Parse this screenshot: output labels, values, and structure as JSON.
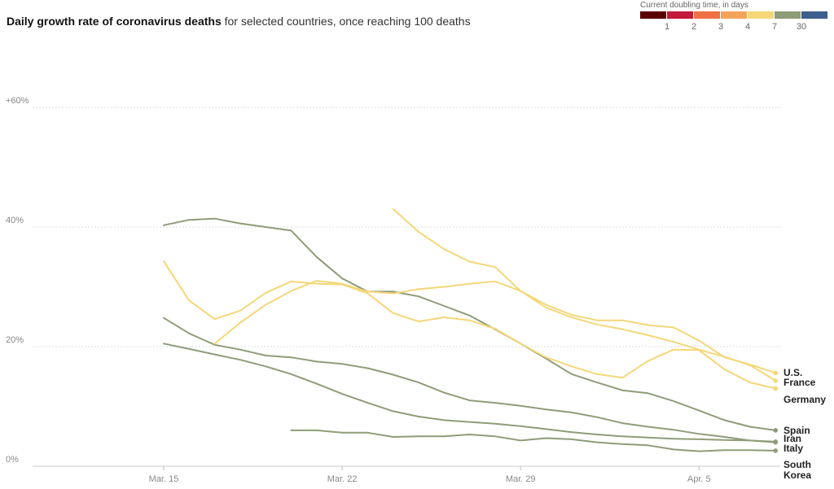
{
  "title": {
    "bold": "Daily growth rate of coronavirus deaths",
    "rest": " for selected countries, once reaching 100 deaths"
  },
  "legend": {
    "title": "Current doubling time, in days",
    "colors": [
      "#5a0000",
      "#c3193a",
      "#ee7045",
      "#f3a45a",
      "#f5d778",
      "#8f9c78",
      "#3c5f8d"
    ],
    "ticks": [
      "1",
      "2",
      "3",
      "4",
      "7",
      "30"
    ]
  },
  "chart_data": {
    "type": "line",
    "x_ticks": [
      "Mar. 15",
      "Mar. 22",
      "Mar. 29",
      "Apr. 5"
    ],
    "y_ticks": [
      "0%",
      "20%",
      "40%",
      "+60%"
    ],
    "ylim": [
      0,
      60
    ],
    "xlim": [
      "2020-03-15",
      "2020-04-08"
    ],
    "grid": true,
    "series": [
      {
        "name": "U.S.",
        "label": [
          "U.S."
        ],
        "color": "#f5d778",
        "x": [
          "2020-03-24",
          "2020-03-25",
          "2020-03-26",
          "2020-03-27",
          "2020-03-28",
          "2020-03-29",
          "2020-03-30",
          "2020-03-31",
          "2020-04-01",
          "2020-04-02",
          "2020-04-03",
          "2020-04-04",
          "2020-04-05",
          "2020-04-06",
          "2020-04-07",
          "2020-04-08"
        ],
        "y": [
          43,
          39.2,
          36.3,
          34.2,
          33.3,
          29.3,
          27,
          25.3,
          24.4,
          24.4,
          23.6,
          23.2,
          21,
          18.2,
          17,
          15.6
        ]
      },
      {
        "name": "France",
        "label": [
          "France"
        ],
        "color": "#f5d778",
        "x": [
          "2020-03-17",
          "2020-03-18",
          "2020-03-19",
          "2020-03-20",
          "2020-03-21",
          "2020-03-22",
          "2020-03-23",
          "2020-03-24",
          "2020-03-25",
          "2020-03-26",
          "2020-03-27",
          "2020-03-28",
          "2020-03-29",
          "2020-03-30",
          "2020-03-31",
          "2020-04-01",
          "2020-04-02",
          "2020-04-03",
          "2020-04-04",
          "2020-04-05",
          "2020-04-06",
          "2020-04-07",
          "2020-04-08"
        ],
        "y": [
          20.5,
          24,
          27,
          29.3,
          31,
          30.5,
          29.2,
          28.9,
          29.6,
          30,
          30.5,
          30.9,
          29.3,
          26.5,
          24.9,
          23.7,
          22.9,
          21.9,
          20.8,
          19.5,
          18.3,
          16.9,
          14.3
        ]
      },
      {
        "name": "Germany",
        "label": [
          "Germany"
        ],
        "color": "#f5d778",
        "x": [
          "2020-03-15",
          "2020-03-16",
          "2020-03-17",
          "2020-03-18",
          "2020-03-19",
          "2020-03-20",
          "2020-03-21",
          "2020-03-22",
          "2020-03-23",
          "2020-03-24",
          "2020-03-25",
          "2020-03-26",
          "2020-03-27",
          "2020-03-28",
          "2020-03-29",
          "2020-03-30",
          "2020-03-31",
          "2020-04-01",
          "2020-04-02",
          "2020-04-03",
          "2020-04-04",
          "2020-04-05",
          "2020-04-06",
          "2020-04-07",
          "2020-04-08"
        ],
        "y": [
          34.3,
          27.7,
          24.6,
          26,
          29,
          30.9,
          30.5,
          30.4,
          28.9,
          25.6,
          24.2,
          24.9,
          24.4,
          23,
          20.5,
          18.2,
          16.7,
          15.4,
          14.8,
          17.6,
          19.5,
          19.4,
          16.2,
          14,
          13
        ]
      },
      {
        "name": "Spain",
        "label": [
          "Spain"
        ],
        "color": "#8f9c78",
        "x": [
          "2020-03-15",
          "2020-03-16",
          "2020-03-17",
          "2020-03-18",
          "2020-03-19",
          "2020-03-20",
          "2020-03-21",
          "2020-03-22",
          "2020-03-23",
          "2020-03-24",
          "2020-03-25",
          "2020-03-26",
          "2020-03-27",
          "2020-03-28",
          "2020-03-29",
          "2020-03-30",
          "2020-03-31",
          "2020-04-01",
          "2020-04-02",
          "2020-04-03",
          "2020-04-04",
          "2020-04-05",
          "2020-04-06",
          "2020-04-07",
          "2020-04-08"
        ],
        "y": [
          40.3,
          41.2,
          41.4,
          40.6,
          40,
          39.4,
          35,
          31.4,
          29.2,
          29.2,
          28.4,
          26.8,
          25.2,
          22.9,
          20.5,
          18,
          15.4,
          14,
          12.7,
          12.2,
          10.9,
          9.3,
          7.7,
          6.6,
          6
        ]
      },
      {
        "name": "Iran",
        "label": [
          "Iran"
        ],
        "color": "#8f9c78",
        "x": [
          "2020-03-15",
          "2020-03-16",
          "2020-03-17",
          "2020-03-18",
          "2020-03-19",
          "2020-03-20",
          "2020-03-21",
          "2020-03-22",
          "2020-03-23",
          "2020-03-24",
          "2020-03-25",
          "2020-03-26",
          "2020-03-27",
          "2020-03-28",
          "2020-03-29",
          "2020-03-30",
          "2020-03-31",
          "2020-04-01",
          "2020-04-02",
          "2020-04-03",
          "2020-04-04",
          "2020-04-05",
          "2020-04-06",
          "2020-04-07",
          "2020-04-08"
        ],
        "y": [
          24.8,
          22.2,
          20.3,
          19.5,
          18.5,
          18.2,
          17.5,
          17.1,
          16.4,
          15.3,
          14,
          12.3,
          11,
          10.6,
          10.1,
          9.5,
          9,
          8.2,
          7.2,
          6.6,
          6.1,
          5.4,
          4.9,
          4.3,
          4
        ]
      },
      {
        "name": "Italy",
        "label": [
          "Italy"
        ],
        "color": "#8f9c78",
        "x": [
          "2020-03-15",
          "2020-03-16",
          "2020-03-17",
          "2020-03-18",
          "2020-03-19",
          "2020-03-20",
          "2020-03-21",
          "2020-03-22",
          "2020-03-23",
          "2020-03-24",
          "2020-03-25",
          "2020-03-26",
          "2020-03-27",
          "2020-03-28",
          "2020-03-29",
          "2020-03-30",
          "2020-03-31",
          "2020-04-01",
          "2020-04-02",
          "2020-04-03",
          "2020-04-04",
          "2020-04-05",
          "2020-04-06",
          "2020-04-07",
          "2020-04-08"
        ],
        "y": [
          20.5,
          19.6,
          18.7,
          17.8,
          16.7,
          15.4,
          13.8,
          12.1,
          10.6,
          9.2,
          8.3,
          7.7,
          7.4,
          7.1,
          6.7,
          6.2,
          5.7,
          5.3,
          5,
          4.8,
          4.6,
          4.5,
          4.4,
          4.3,
          4.1
        ]
      },
      {
        "name": "South Korea",
        "label": [
          "South",
          "Korea"
        ],
        "color": "#8f9c78",
        "x": [
          "2020-03-20",
          "2020-03-21",
          "2020-03-22",
          "2020-03-23",
          "2020-03-24",
          "2020-03-25",
          "2020-03-26",
          "2020-03-27",
          "2020-03-28",
          "2020-03-29",
          "2020-03-30",
          "2020-03-31",
          "2020-04-01",
          "2020-04-02",
          "2020-04-03",
          "2020-04-04",
          "2020-04-05",
          "2020-04-06",
          "2020-04-07",
          "2020-04-08"
        ],
        "y": [
          6,
          6,
          5.6,
          5.6,
          4.9,
          5,
          5,
          5.3,
          5,
          4.3,
          4.7,
          4.5,
          4,
          3.7,
          3.5,
          2.8,
          2.5,
          2.7,
          2.7,
          2.6
        ]
      }
    ]
  }
}
